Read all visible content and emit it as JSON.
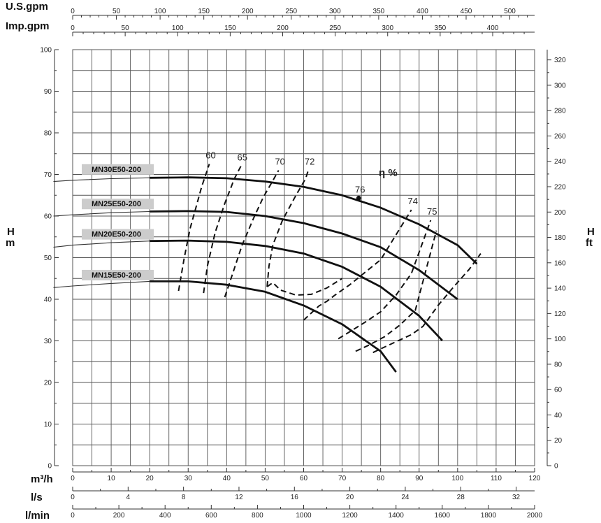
{
  "chart_data": {
    "type": "line",
    "title": "",
    "axes": {
      "us_gpm": {
        "label": "U.S.gpm",
        "ticks": [
          0,
          50,
          100,
          150,
          200,
          250,
          300,
          350,
          400,
          450,
          500
        ]
      },
      "imp_gpm": {
        "label": "Imp.gpm",
        "ticks": [
          0,
          50,
          100,
          150,
          200,
          250,
          300,
          350,
          400
        ]
      },
      "m3h": {
        "label": "m³/h",
        "ticks": [
          0,
          10,
          20,
          30,
          40,
          50,
          60,
          70,
          80,
          90,
          100,
          110,
          120
        ],
        "range": [
          0,
          120
        ]
      },
      "ls": {
        "label": "l/s",
        "ticks": [
          0,
          4,
          8,
          12,
          16,
          20,
          24,
          28,
          32
        ]
      },
      "lmin": {
        "label": "l/min",
        "ticks": [
          0,
          200,
          400,
          600,
          800,
          1000,
          1200,
          1400,
          1600,
          1800,
          2000
        ]
      },
      "head_m": {
        "label_top": "H",
        "label_bottom": "m",
        "ticks": [
          0,
          10,
          20,
          30,
          40,
          50,
          60,
          70,
          80,
          90,
          100
        ],
        "range": [
          0,
          100
        ]
      },
      "head_ft": {
        "label_top": "H",
        "label_bottom": "ft",
        "ticks": [
          0,
          20,
          40,
          60,
          80,
          100,
          120,
          140,
          160,
          180,
          200,
          220,
          240,
          260,
          280,
          300,
          320
        ]
      }
    },
    "grid": true,
    "series": [
      {
        "name": "MN30E50-200",
        "x": [
          -5,
          0,
          10,
          20,
          30,
          40,
          50,
          60,
          70,
          80,
          90,
          100,
          105
        ],
        "y": [
          68.3,
          68.6,
          69,
          69.2,
          69.3,
          69.1,
          68.3,
          67,
          65,
          62,
          58,
          53,
          48.5
        ]
      },
      {
        "name": "MN25E50-200",
        "x": [
          -5,
          0,
          10,
          20,
          30,
          40,
          50,
          60,
          70,
          80,
          90,
          100
        ],
        "y": [
          60,
          60.3,
          60.8,
          61.1,
          61.2,
          61,
          60,
          58.3,
          55.8,
          52.5,
          47,
          40
        ]
      },
      {
        "name": "MN20E50-200",
        "x": [
          -5,
          0,
          10,
          20,
          30,
          40,
          50,
          60,
          70,
          80,
          90,
          96
        ],
        "y": [
          52.5,
          53,
          53.6,
          54,
          54.1,
          53.8,
          52.8,
          51,
          47.8,
          43,
          36,
          30.1
        ]
      },
      {
        "name": "MN15E50-200",
        "x": [
          -5,
          0,
          10,
          20,
          30,
          40,
          50,
          60,
          70,
          80,
          84
        ],
        "y": [
          42.8,
          43.2,
          43.8,
          44.3,
          44.3,
          43.5,
          41.8,
          38.5,
          34,
          27.5,
          22.5
        ]
      }
    ],
    "efficiency": {
      "title": "η %",
      "curves": [
        {
          "label": "60",
          "x": [
            27.5,
            29,
            30.5,
            32,
            33.5,
            35.5
          ],
          "y": [
            42,
            50,
            57,
            62,
            67,
            72.5
          ]
        },
        {
          "label": "65",
          "x": [
            34,
            35,
            37,
            39.5,
            42,
            43.7
          ],
          "y": [
            41.5,
            48,
            56,
            63,
            69,
            72
          ]
        },
        {
          "label": "70",
          "x": [
            39.5,
            41.5,
            44,
            47,
            49.5,
            52,
            53.5
          ],
          "y": [
            40.5,
            46,
            53,
            59.5,
            64.5,
            68.5,
            71
          ]
        },
        {
          "label": "72",
          "x": [
            50.5,
            51,
            52,
            54.5,
            58,
            60.5,
            61.2
          ],
          "y": [
            43,
            48,
            53,
            59,
            65,
            69,
            71
          ]
        },
        {
          "label": "74",
          "x": [
            60,
            62,
            64,
            66,
            68,
            72,
            76,
            80,
            84,
            88
          ],
          "y": [
            35,
            36.7,
            38.4,
            39.5,
            40.9,
            43.5,
            46.5,
            49.5,
            55.5,
            61.5
          ]
        },
        {
          "label": "75",
          "x": [
            69,
            72,
            76,
            80,
            84,
            88,
            93
          ],
          "y": [
            30.5,
            32.2,
            34.5,
            37,
            41,
            46.2,
            59
          ]
        },
        {
          "label": "76",
          "x": [
            74.3
          ],
          "y": [
            64.3
          ]
        },
        {
          "x": [
            73.5,
            77,
            81,
            85,
            89,
            94.5
          ],
          "y": [
            27.5,
            29,
            31,
            33.8,
            37.3,
            56.5
          ]
        },
        {
          "x": [
            78,
            81,
            84,
            88,
            91,
            95,
            99,
            103,
            106
          ],
          "y": [
            27.2,
            28.5,
            29.8,
            31.5,
            33.5,
            38.6,
            43,
            47.2,
            51
          ]
        },
        {
          "x": [
            50.5,
            52,
            54,
            58,
            62,
            66,
            70
          ],
          "y": [
            43,
            44,
            42.2,
            41,
            41.2,
            42.7,
            45
          ]
        }
      ]
    }
  }
}
